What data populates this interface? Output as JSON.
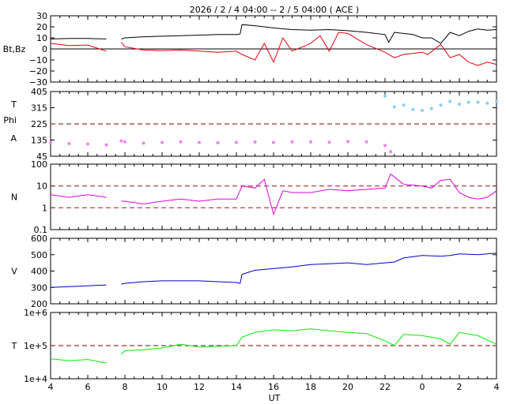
{
  "title": "2026 /  2 /  4   04:00 -- 2 /  5   04:00 ( ACE )",
  "xlabel": "UT",
  "x_ticks": [
    "4",
    "6",
    "8",
    "10",
    "12",
    "14",
    "16",
    "18",
    "20",
    "22",
    "0",
    "2",
    "4"
  ],
  "colors": {
    "bt": "#000000",
    "bz": "#e8000b",
    "temp_alpha": "#87cefa",
    "alpha": "#ee82ee",
    "density": "#e000e0",
    "velocity": "#0000d0",
    "temperature": "#00ee00",
    "reference_line": "#a0322d"
  },
  "chart_data": [
    {
      "type": "line",
      "panel": "magnetic field",
      "ylabel": "Bt,Bz",
      "y_ticks": [
        "30",
        "20",
        "10",
        "0",
        "−10",
        "−20",
        "−30"
      ],
      "ylim": [
        -30,
        30
      ],
      "x_range_hours": [
        4,
        28
      ],
      "zero_line": 0,
      "data_gap_hours": [
        7.1,
        7.8
      ],
      "series": [
        {
          "key": "bt",
          "points": [
            [
              4,
              9
            ],
            [
              5,
              9.5
            ],
            [
              6,
              9.5
            ],
            [
              7,
              9
            ],
            [
              7.8,
              9
            ],
            [
              8,
              10
            ],
            [
              9,
              11
            ],
            [
              10,
              11.5
            ],
            [
              11,
              12
            ],
            [
              12,
              12.5
            ],
            [
              13,
              13
            ],
            [
              14,
              13
            ],
            [
              14.2,
              13.5
            ],
            [
              14.3,
              22
            ],
            [
              15,
              21
            ],
            [
              15.5,
              20
            ],
            [
              16,
              19
            ],
            [
              17,
              17.5
            ],
            [
              18,
              17
            ],
            [
              19,
              17.5
            ],
            [
              20,
              16.5
            ],
            [
              21,
              15
            ],
            [
              22,
              13
            ],
            [
              22.2,
              6
            ],
            [
              22.5,
              15
            ],
            [
              23,
              14
            ],
            [
              23.5,
              13
            ],
            [
              24,
              10
            ],
            [
              24.5,
              10
            ],
            [
              25,
              5
            ],
            [
              25.5,
              15
            ],
            [
              26,
              12
            ],
            [
              26.5,
              16
            ],
            [
              27,
              18
            ],
            [
              27.5,
              17
            ],
            [
              28,
              17.5
            ]
          ]
        },
        {
          "key": "bz",
          "points": [
            [
              4,
              5
            ],
            [
              5,
              3
            ],
            [
              6,
              3.5
            ],
            [
              7,
              -2
            ],
            [
              7.8,
              6
            ],
            [
              8,
              2
            ],
            [
              9,
              -1
            ],
            [
              10,
              -1.5
            ],
            [
              11,
              -1
            ],
            [
              12,
              -2
            ],
            [
              13,
              -3
            ],
            [
              14,
              -2
            ],
            [
              14.3,
              -5
            ],
            [
              15,
              -10
            ],
            [
              15.5,
              5
            ],
            [
              16,
              -12
            ],
            [
              16.5,
              10
            ],
            [
              17,
              -2
            ],
            [
              18,
              5
            ],
            [
              18.5,
              12
            ],
            [
              19,
              -2
            ],
            [
              19.5,
              15
            ],
            [
              20,
              14
            ],
            [
              21,
              4
            ],
            [
              22,
              -3
            ],
            [
              22.5,
              -8
            ],
            [
              23,
              -5
            ],
            [
              24,
              -3
            ],
            [
              24.3,
              -5
            ],
            [
              25,
              4
            ],
            [
              25.5,
              -8
            ],
            [
              26,
              -5
            ],
            [
              26.5,
              -12
            ],
            [
              27,
              -15
            ],
            [
              27.5,
              -12
            ],
            [
              28,
              -14
            ]
          ]
        }
      ]
    },
    {
      "type": "scatter",
      "panel": "alpha / temperature",
      "ylabels": [
        "T",
        "Phi",
        "A"
      ],
      "y_ticks": [
        "405",
        "315",
        "225",
        "135",
        "45"
      ],
      "ylim": [
        45,
        405
      ],
      "reference_lines": [
        225
      ],
      "x_range_hours": [
        4,
        28
      ],
      "data_gap_hours": [
        7.1,
        7.8
      ],
      "series": [
        {
          "key": "temp_alpha",
          "points": [
            [
              22,
              380
            ],
            [
              22.5,
              320
            ],
            [
              23,
              330
            ],
            [
              23.5,
              305
            ],
            [
              24,
              300
            ],
            [
              24.5,
              310
            ],
            [
              25,
              330
            ],
            [
              25.5,
              350
            ],
            [
              26,
              335
            ],
            [
              26.5,
              345
            ],
            [
              27,
              345
            ],
            [
              27.5,
              340
            ],
            [
              28,
              350
            ]
          ]
        },
        {
          "key": "alpha",
          "points": [
            [
              4,
              120
            ],
            [
              5,
              115
            ],
            [
              6,
              113
            ],
            [
              7,
              108
            ],
            [
              7.8,
              130
            ],
            [
              8,
              125
            ],
            [
              9,
              118
            ],
            [
              10,
              122
            ],
            [
              11,
              125
            ],
            [
              12,
              122
            ],
            [
              13,
              120
            ],
            [
              14,
              122
            ],
            [
              15,
              124
            ],
            [
              16,
              122
            ],
            [
              17,
              125
            ],
            [
              18,
              125
            ],
            [
              19,
              123
            ],
            [
              20,
              127
            ],
            [
              21,
              125
            ],
            [
              22,
              105
            ],
            [
              22.3,
              70
            ]
          ]
        }
      ]
    },
    {
      "type": "line",
      "panel": "density",
      "ylabel": "N",
      "y_ticks": [
        "100",
        "10",
        "1",
        "0.1"
      ],
      "ylim": [
        0.1,
        100
      ],
      "scale": "log",
      "reference_lines": [
        1,
        10
      ],
      "x_range_hours": [
        4,
        28
      ],
      "data_gap_hours": [
        7.1,
        7.8
      ],
      "series": [
        {
          "key": "density",
          "points": [
            [
              4,
              4
            ],
            [
              5,
              3
            ],
            [
              6,
              4
            ],
            [
              7,
              3
            ],
            [
              7.8,
              2
            ],
            [
              8,
              2
            ],
            [
              9,
              1.5
            ],
            [
              10,
              2
            ],
            [
              11,
              2.5
            ],
            [
              12,
              2
            ],
            [
              13,
              2.5
            ],
            [
              14,
              2.5
            ],
            [
              14.3,
              10
            ],
            [
              15,
              8
            ],
            [
              15.5,
              20
            ],
            [
              16,
              0.5
            ],
            [
              16.5,
              6
            ],
            [
              17,
              5
            ],
            [
              18,
              5
            ],
            [
              19,
              7
            ],
            [
              20,
              6
            ],
            [
              21,
              7
            ],
            [
              22,
              8
            ],
            [
              22.3,
              35
            ],
            [
              23,
              12
            ],
            [
              24,
              10
            ],
            [
              24.5,
              8
            ],
            [
              25,
              18
            ],
            [
              25.5,
              20
            ],
            [
              26,
              5
            ],
            [
              26.5,
              3
            ],
            [
              27,
              2.5
            ],
            [
              27.5,
              3
            ],
            [
              28,
              6
            ]
          ]
        }
      ]
    },
    {
      "type": "line",
      "panel": "velocity",
      "ylabel": "V",
      "y_ticks": [
        "600",
        "500",
        "400",
        "300",
        "200"
      ],
      "ylim": [
        200,
        600
      ],
      "x_range_hours": [
        4,
        28
      ],
      "data_gap_hours": [
        7.1,
        7.8
      ],
      "series": [
        {
          "key": "velocity",
          "points": [
            [
              4,
              300
            ],
            [
              5,
              305
            ],
            [
              6,
              310
            ],
            [
              7,
              315
            ],
            [
              7.8,
              320
            ],
            [
              8,
              325
            ],
            [
              9,
              335
            ],
            [
              10,
              340
            ],
            [
              11,
              340
            ],
            [
              12,
              340
            ],
            [
              13,
              335
            ],
            [
              14,
              330
            ],
            [
              14.2,
              325
            ],
            [
              14.3,
              380
            ],
            [
              15,
              405
            ],
            [
              16,
              415
            ],
            [
              17,
              425
            ],
            [
              18,
              440
            ],
            [
              19,
              445
            ],
            [
              20,
              450
            ],
            [
              21,
              440
            ],
            [
              22,
              450
            ],
            [
              22.5,
              455
            ],
            [
              23,
              480
            ],
            [
              24,
              495
            ],
            [
              25,
              490
            ],
            [
              25.5,
              495
            ],
            [
              26,
              505
            ],
            [
              27,
              500
            ],
            [
              28,
              510
            ]
          ]
        }
      ]
    },
    {
      "type": "line",
      "panel": "temperature",
      "ylabel": "T",
      "y_ticks": [
        "1e+6",
        "1e+5",
        "1e+4"
      ],
      "ylim": [
        10000,
        1000000
      ],
      "scale": "log",
      "reference_lines": [
        100000
      ],
      "x_range_hours": [
        4,
        28
      ],
      "data_gap_hours": [
        7.1,
        7.8
      ],
      "series": [
        {
          "key": "temperature",
          "points": [
            [
              4,
              40000
            ],
            [
              5,
              35000
            ],
            [
              6,
              38000
            ],
            [
              7,
              30000
            ],
            [
              7.8,
              55000
            ],
            [
              8,
              70000
            ],
            [
              9,
              75000
            ],
            [
              10,
              85000
            ],
            [
              11,
              110000
            ],
            [
              12,
              90000
            ],
            [
              13,
              95000
            ],
            [
              14,
              100000
            ],
            [
              14.3,
              180000
            ],
            [
              15,
              250000
            ],
            [
              16,
              300000
            ],
            [
              17,
              280000
            ],
            [
              18,
              320000
            ],
            [
              19,
              280000
            ],
            [
              20,
              250000
            ],
            [
              21,
              230000
            ],
            [
              22,
              140000
            ],
            [
              22.5,
              100000
            ],
            [
              23,
              220000
            ],
            [
              24,
              200000
            ],
            [
              25,
              160000
            ],
            [
              25.5,
              110000
            ],
            [
              26,
              250000
            ],
            [
              27,
              200000
            ],
            [
              28,
              110000
            ]
          ]
        }
      ]
    }
  ]
}
